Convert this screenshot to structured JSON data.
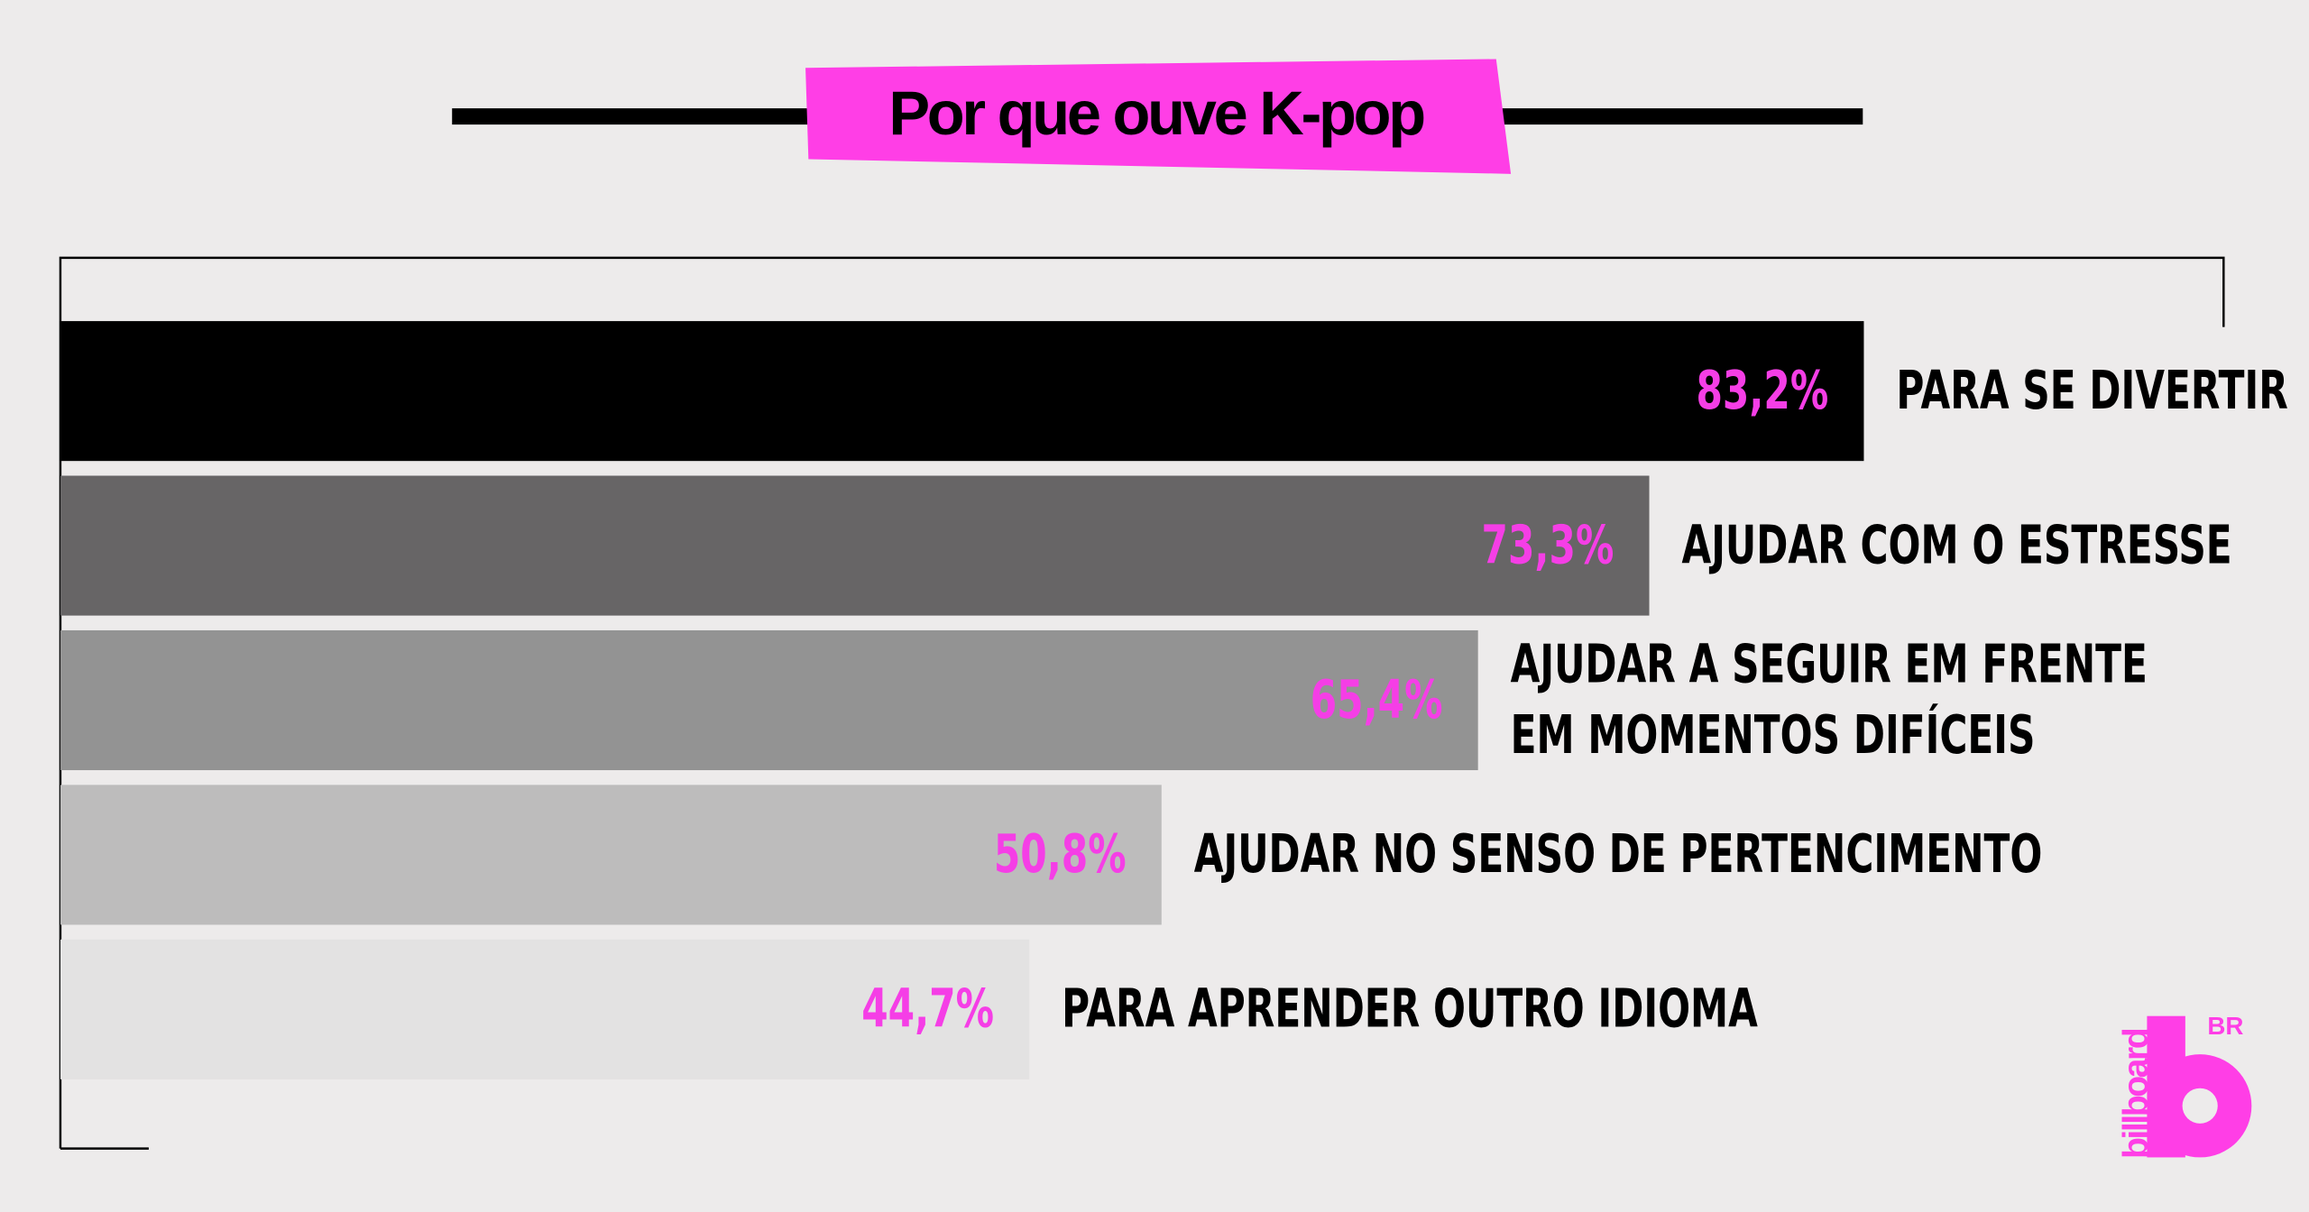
{
  "chart_data": {
    "type": "hbar",
    "title": "Por que ouve K-pop",
    "categories": [
      "PARA SE DIVERTIR",
      "AJUDAR COM O ESTRESSE",
      "AJUDAR A SEGUIR EM FRENTE\nEM MOMENTOS DIFÍCEIS",
      "AJUDAR NO SENSO DE PERTENCIMENTO",
      "PARA APRENDER OUTRO IDIOMA"
    ],
    "values": [
      83.2,
      73.3,
      65.4,
      50.8,
      44.7
    ],
    "value_labels": [
      "83,2%",
      "73,3%",
      "65,4%",
      "50,8%",
      "44,7%"
    ],
    "colors": [
      "#000000",
      "#676566",
      "#939393",
      "#bdbcbc",
      "#e3e2e2"
    ],
    "label_color": "#f53ee6",
    "xlim": [
      0,
      100
    ]
  },
  "logo": {
    "text": "billboard",
    "badge": "BR"
  }
}
